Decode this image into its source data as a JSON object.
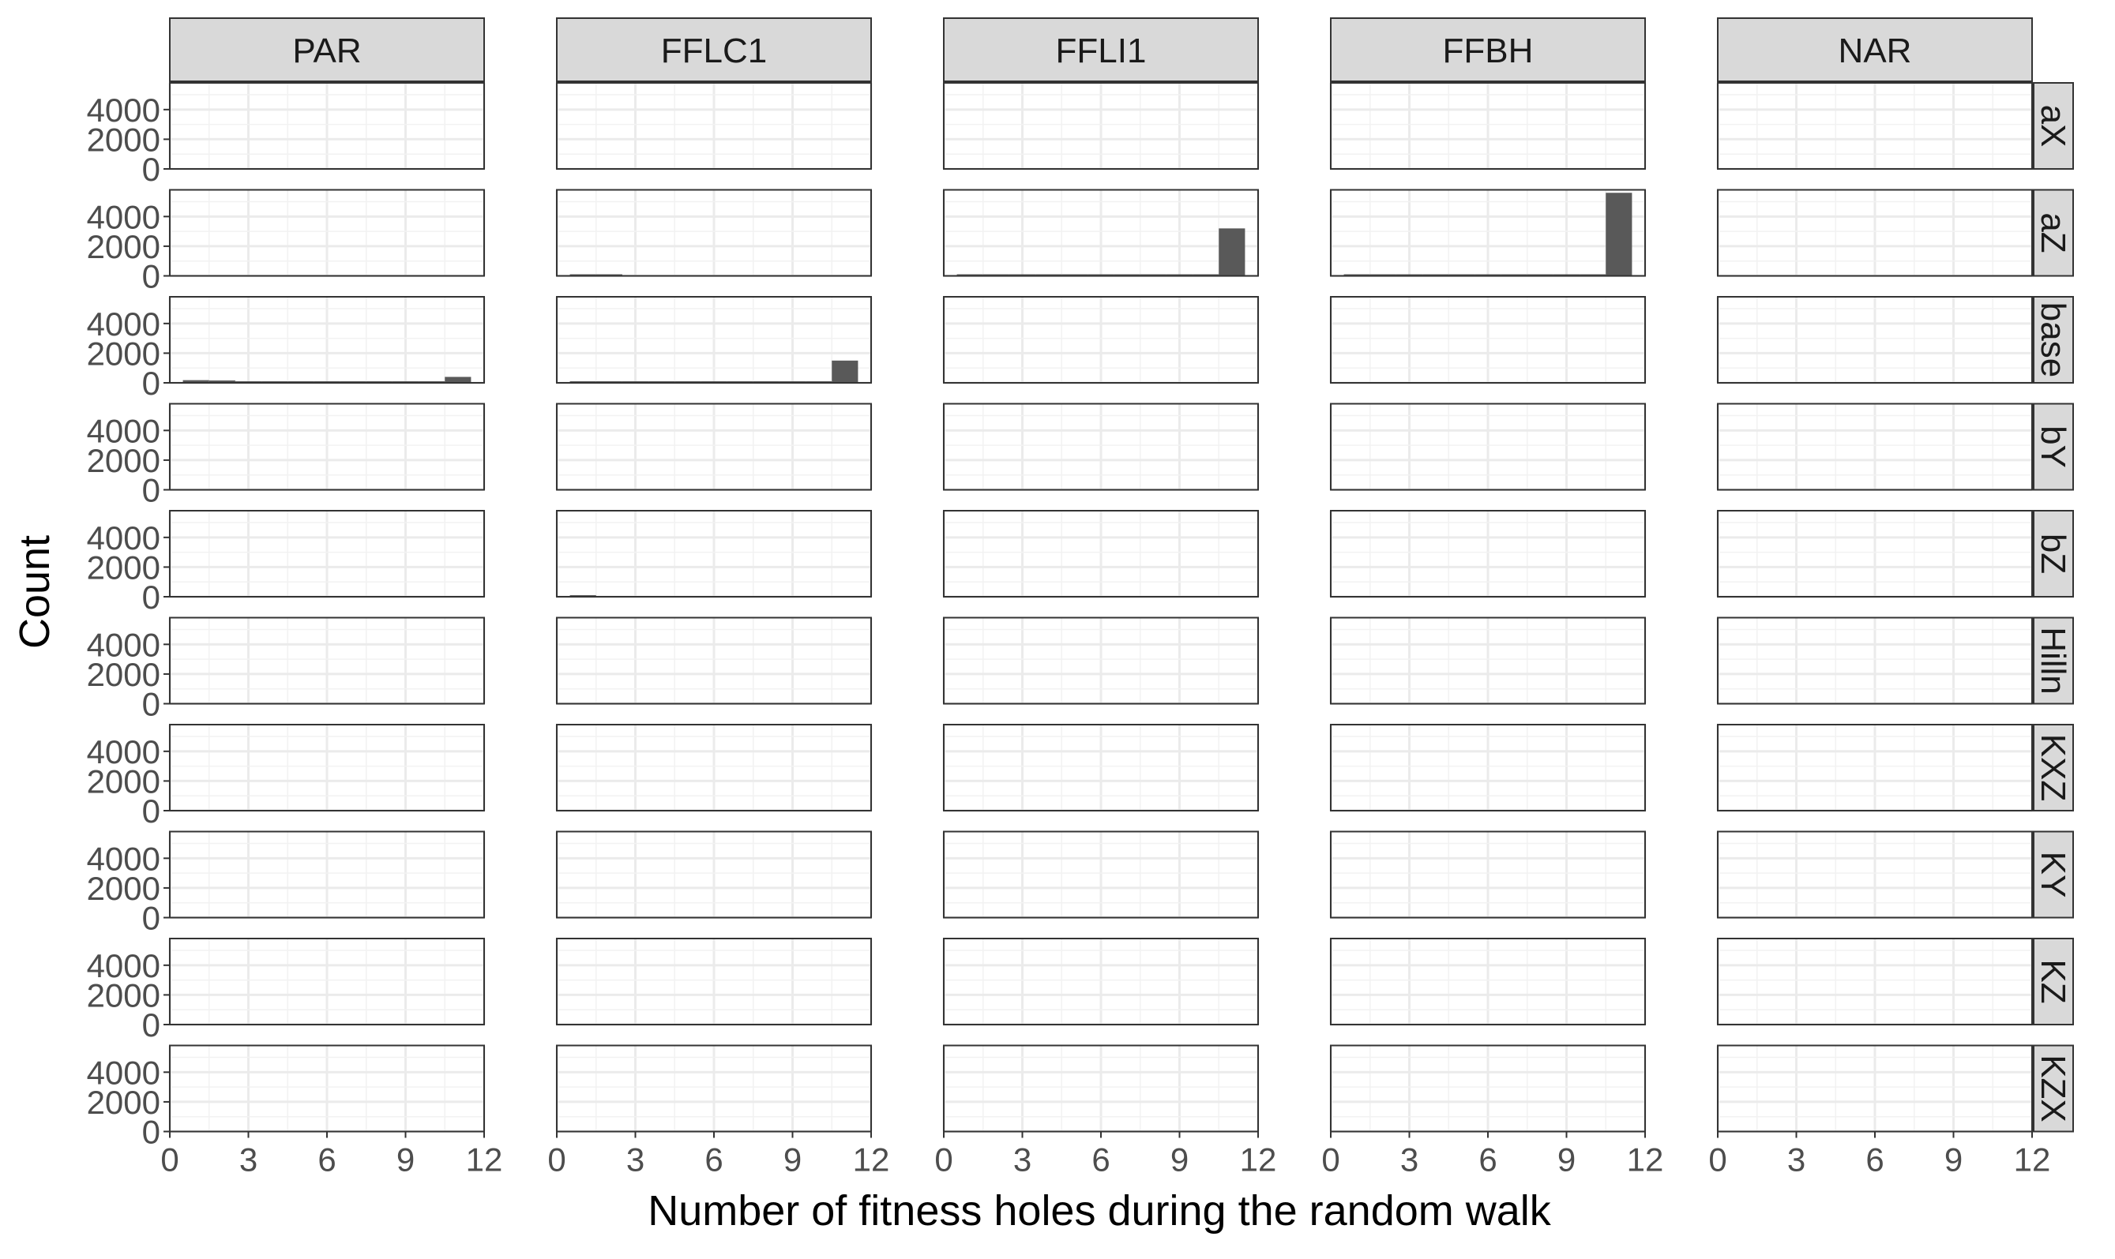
{
  "chart_data": {
    "type": "bar",
    "xlabel": "Number of fitness holes during the random walk",
    "ylabel": "Count",
    "columns": [
      "PAR",
      "FFLC1",
      "FFLI1",
      "FFBH",
      "NAR"
    ],
    "rows": [
      "aX",
      "aZ",
      "base",
      "bY",
      "bZ",
      "Hilln",
      "KXZ",
      "KY",
      "KZ",
      "KZX"
    ],
    "x_ticks": [
      "0",
      "3",
      "6",
      "9",
      "12"
    ],
    "y_ticks": [
      "0",
      "2000",
      "4000"
    ],
    "xlim": [
      0,
      12
    ],
    "ylim": [
      0,
      5800
    ],
    "bin_width": 1,
    "bar_color": "#595959",
    "strip_color": "#d9d9d9",
    "panels": [
      {
        "column": "FFLC1",
        "row": "aZ",
        "x": [
          1,
          2
        ],
        "values": [
          60,
          30
        ]
      },
      {
        "column": "FFLI1",
        "row": "aZ",
        "x": [
          1,
          2,
          3,
          4,
          5,
          6,
          7,
          8,
          9,
          10,
          11
        ],
        "values": [
          15,
          15,
          15,
          15,
          15,
          15,
          15,
          15,
          15,
          15,
          3200
        ]
      },
      {
        "column": "FFBH",
        "row": "aZ",
        "x": [
          1,
          2,
          3,
          4,
          5,
          6,
          7,
          8,
          9,
          10,
          11
        ],
        "values": [
          80,
          80,
          80,
          30,
          30,
          70,
          30,
          60,
          60,
          60,
          5600
        ]
      },
      {
        "column": "PAR",
        "row": "base",
        "x": [
          1,
          2,
          3,
          4,
          5,
          6,
          7,
          8,
          9,
          10,
          11
        ],
        "values": [
          180,
          160,
          100,
          60,
          60,
          60,
          60,
          60,
          60,
          60,
          400
        ]
      },
      {
        "column": "FFLC1",
        "row": "base",
        "x": [
          1,
          2,
          3,
          4,
          5,
          6,
          7,
          8,
          9,
          10,
          11
        ],
        "values": [
          80,
          80,
          30,
          30,
          30,
          30,
          30,
          30,
          30,
          30,
          1500
        ]
      },
      {
        "column": "FFLC1",
        "row": "bZ",
        "x": [
          1
        ],
        "values": [
          40
        ]
      }
    ]
  }
}
